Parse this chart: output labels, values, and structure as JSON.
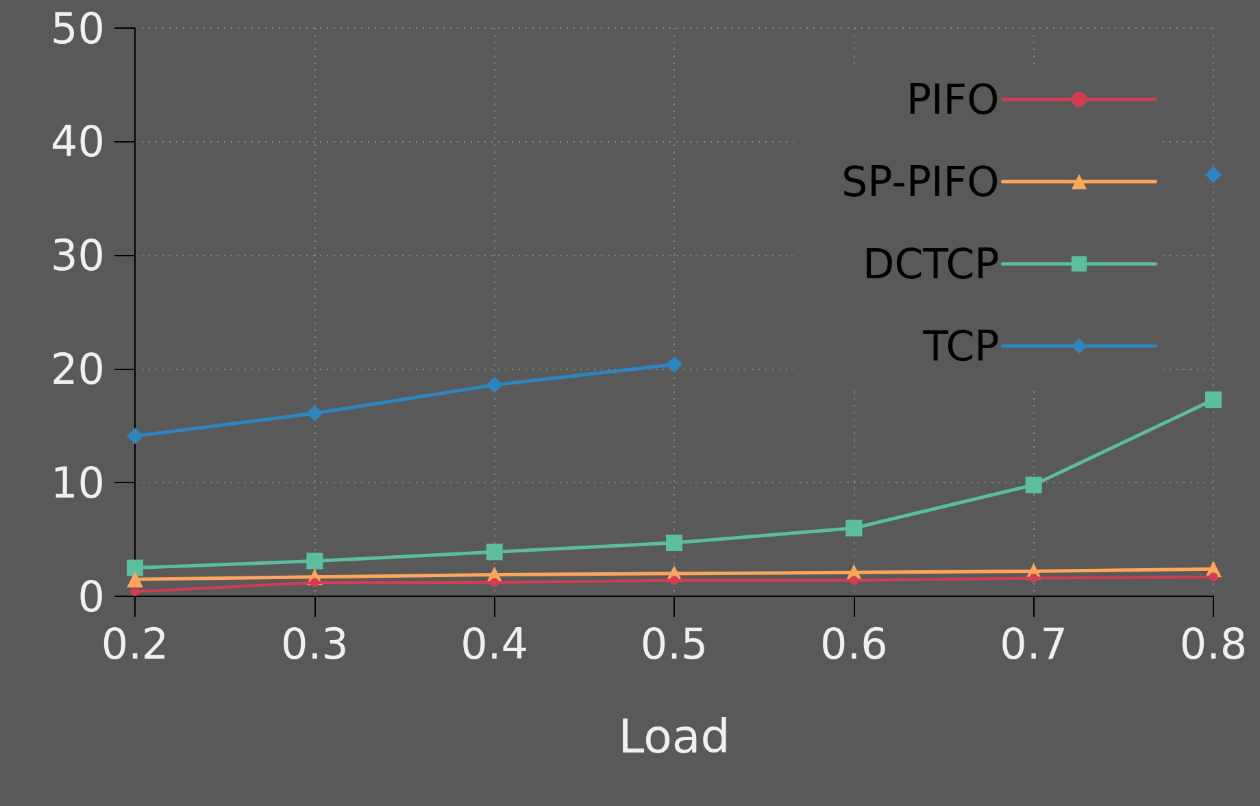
{
  "chart_data": {
    "type": "line",
    "xlabel": "Load",
    "x": [
      0.2,
      0.3,
      0.4,
      0.5,
      0.6,
      0.7,
      0.8
    ],
    "xlim": [
      0.2,
      0.8
    ],
    "xticks": [
      0.2,
      0.3,
      0.4,
      0.5,
      0.6,
      0.7,
      0.8
    ],
    "ylim": [
      0,
      50
    ],
    "yticks": [
      0,
      10,
      20,
      30,
      40,
      50
    ],
    "grid": true,
    "legend": "top right",
    "line_style": "solid",
    "series": [
      {
        "name": "PIFO",
        "color": "#d43d51",
        "marker": "circle",
        "values": [
          0.4,
          1.2,
          1.2,
          1.4,
          1.4,
          1.6,
          1.7
        ]
      },
      {
        "name": "SP-PIFO",
        "color": "#ffa65a",
        "marker": "triangle",
        "values": [
          1.5,
          1.7,
          1.9,
          2.0,
          2.1,
          2.2,
          2.4
        ]
      },
      {
        "name": "DCTCP",
        "color": "#5bbf9f",
        "marker": "square",
        "values": [
          2.5,
          3.1,
          3.9,
          4.7,
          6.0,
          9.8,
          17.3
        ]
      },
      {
        "name": "TCP",
        "color": "#2e86c1",
        "marker": "diamond",
        "values": [
          14.1,
          16.1,
          18.6,
          20.4,
          null,
          null,
          37.1
        ]
      }
    ]
  }
}
